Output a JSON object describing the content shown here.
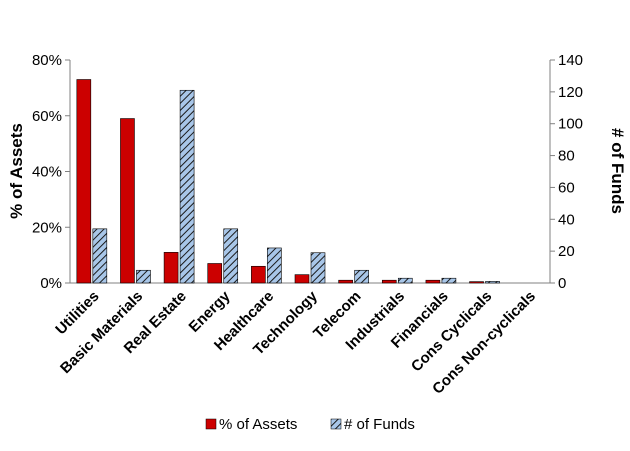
{
  "chart_data": {
    "type": "bar",
    "categories": [
      "Utilities",
      "Basic Materials",
      "Real Estate",
      "Energy",
      "Healthcare",
      "Technology",
      "Telecom",
      "Industrials",
      "Financials",
      "Cons Cyclicals",
      "Cons Non-cyclicals"
    ],
    "series": [
      {
        "name": "% of Assets",
        "axis": "left",
        "color": "#cc0000",
        "values": [
          73,
          59,
          11,
          7,
          6,
          3,
          1,
          1,
          1,
          0.5,
          0
        ]
      },
      {
        "name": "# of Funds",
        "axis": "right",
        "color": "#9bbce0",
        "pattern": "diagonal-hatch",
        "values": [
          34,
          8,
          121,
          34,
          22,
          19,
          8,
          3,
          3,
          1,
          0
        ]
      }
    ],
    "ylabel": "% of Assets",
    "y2label": "# of Funds",
    "ylim": [
      0,
      80
    ],
    "y2lim": [
      0,
      140
    ],
    "yticks": [
      "0%",
      "20%",
      "40%",
      "60%",
      "80%"
    ],
    "y2ticks": [
      "0",
      "20",
      "40",
      "60",
      "80",
      "100",
      "120",
      "140"
    ],
    "legend": "bottom",
    "grid": false
  }
}
